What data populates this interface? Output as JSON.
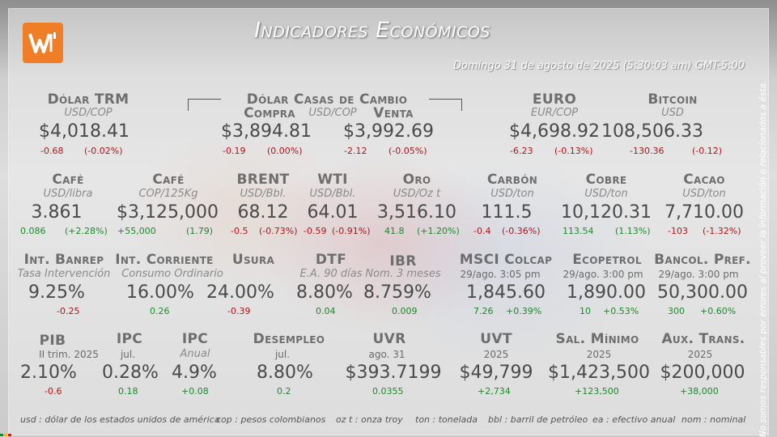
{
  "header": {
    "title": "Indicadores Económicos",
    "datetime": "Domingo 31 de agosto de 2025 (5:30:03 am) GMT-5:00",
    "logo_color": "#f07e26"
  },
  "disclaimer": "No somos responsables por errores al proveer la información o relacionados a ésta.",
  "colors": {
    "negative": "#b0161b",
    "positive": "#1a8a2a"
  },
  "indicators": {
    "trm": {
      "name": "Dólar TRM",
      "unit": "USD/COP",
      "value": "$4,018.41",
      "change": "-0.68",
      "pct": "(-0.02%)"
    },
    "casas": {
      "name": "Dólar Casas de Cambio",
      "unit": "USD/COP",
      "compra": {
        "label": "Compra",
        "value": "$3,894.81",
        "change": "-0.19",
        "pct": "(0.00%)"
      },
      "venta": {
        "label": "Venta",
        "value": "$3,992.69",
        "change": "-2.12",
        "pct": "(-0.05%)"
      }
    },
    "euro": {
      "name": "EURO",
      "unit": "EUR/COP",
      "value": "$4,698.92",
      "change": "-6.23",
      "pct": "(-0.13%)"
    },
    "bitcoin": {
      "name": "Bitcoin",
      "unit": "USD",
      "value": "108,506.33",
      "change": "-130.36",
      "pct": "(-0.12)"
    },
    "cafe_usd": {
      "name": "Café",
      "unit": "USD/libra",
      "value": "3.861",
      "change": "0.086",
      "pct": "(+2.28%)"
    },
    "cafe_cop": {
      "name": "Café",
      "unit": "COP/125Kg",
      "value": "$3,125,000",
      "change": "+55,000",
      "pct": "(1.79)"
    },
    "brent": {
      "name": "BRENT",
      "unit": "USD/Bbl.",
      "value": "68.12",
      "change": "-0.5",
      "pct": "(-0.73%)"
    },
    "wti": {
      "name": "WTI",
      "unit": "USD/Bbl.",
      "value": "64.01",
      "change": "-0.59",
      "pct": "(-0.91%)"
    },
    "oro": {
      "name": "Oro",
      "unit": "USD/Oz t",
      "value": "3,516.10",
      "change": "41.8",
      "pct": "(+1.20%)"
    },
    "carbon": {
      "name": "Carbón",
      "unit": "USD/ton",
      "value": "111.5",
      "change": "-0.4",
      "pct": "(-0.36%)"
    },
    "cobre": {
      "name": "Cobre",
      "unit": "USD/ton",
      "value": "10,120.31",
      "change": "113.54",
      "pct": "(1.13%)"
    },
    "cacao": {
      "name": "Cacao",
      "unit": "USD/ton",
      "value": "7,710.00",
      "change": "-103",
      "pct": "(-1.32%)"
    },
    "banrep": {
      "name": "Int. Banrep",
      "unit": "Tasa Intervención",
      "value": "9.25%",
      "change": "-0.25"
    },
    "corriente": {
      "name": "Int. Corriente",
      "unit": "Consumo Ordinario",
      "value": "16.00%",
      "change": "0.26"
    },
    "usura": {
      "name": "Usura",
      "value": "24.00%",
      "change": "-0.39"
    },
    "dtf": {
      "name": "DTF",
      "unit": "E.A. 90 días",
      "value": "8.80%",
      "change": "0.04"
    },
    "ibr": {
      "name": "IBR",
      "unit": "Nom. 3 meses",
      "value": "8.759%",
      "change": "0.009"
    },
    "msci": {
      "name": "MSCI Colcap",
      "date": "29/ago. 3:05 pm",
      "value": "1,845.60",
      "change": "7.26",
      "pct": "+0.39%"
    },
    "ecopetrol": {
      "name": "Ecopetrol",
      "date": "29/ago. 3:00 pm",
      "value": "1,890.00",
      "change": "10",
      "pct": "+0.53%"
    },
    "bancol": {
      "name": "Bancol. Pref.",
      "date": "29/ago. 3:00 pm",
      "value": "50,300.00",
      "change": "300",
      "pct": "+0.60%"
    },
    "pib": {
      "name": "PIB",
      "period": "II trim. 2025",
      "value": "2.10%",
      "change": "-0.6"
    },
    "ipc_jul": {
      "name": "IPC",
      "period": "jul.",
      "value": "0.28%",
      "change": "0.18"
    },
    "ipc_anual": {
      "name": "IPC",
      "unit": "Anual",
      "value": "4.9%",
      "change": "+0.08"
    },
    "desempleo": {
      "name": "Desempleo",
      "period": "jul.",
      "value": "8.80%",
      "change": "0.2"
    },
    "uvr": {
      "name": "UVR",
      "period": "ago. 31",
      "value": "$393.7199",
      "change": "0.0355"
    },
    "uvt": {
      "name": "UVT",
      "period": "2025",
      "value": "$49,799",
      "change": "+2,734"
    },
    "salmin": {
      "name": "Sal. Mínimo",
      "period": "2025",
      "value": "$1,423,500",
      "change": "+123,500"
    },
    "auxtrans": {
      "name": "Aux. Trans.",
      "period": "2025",
      "value": "$200,000",
      "change": "+38,000"
    }
  },
  "legend": [
    "usd : dólar de los estados unidos de américa",
    "cop : pesos colombianos",
    "oz t : onza troy",
    "ton : tonelada",
    "bbl : barril de petróleo",
    "ea : efectivo anual",
    "nom : nominal"
  ]
}
